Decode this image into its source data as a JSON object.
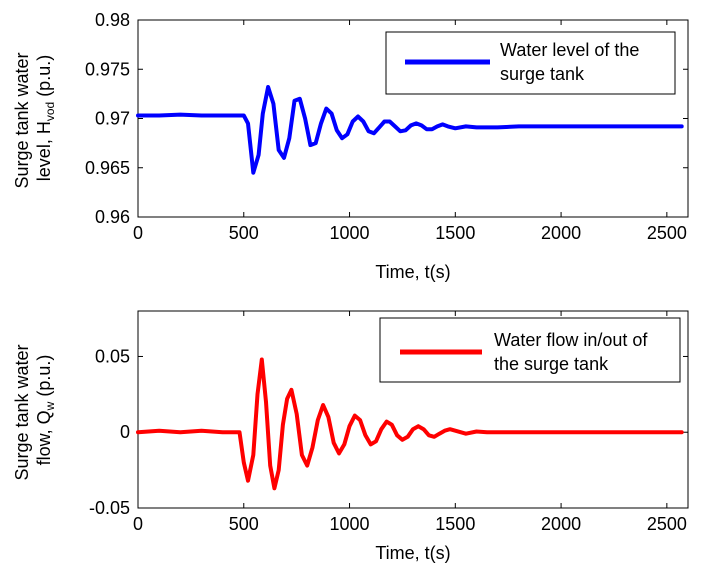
{
  "chart_data": [
    {
      "type": "line",
      "xlabel": "Time, t(s)",
      "ylabel": {
        "line1": "Surge tank water",
        "line2_pre": "level, H",
        "line2_sub": "vod",
        "line2_post": " (p.u.)"
      },
      "xlim": [
        0,
        2600
      ],
      "ylim": [
        0.96,
        0.98
      ],
      "xticks": [
        0,
        500,
        1000,
        1500,
        2000,
        2500
      ],
      "yticks": [
        0.96,
        0.965,
        0.97,
        0.975,
        0.98
      ],
      "xtick_labels": [
        "0",
        "500",
        "1000",
        "1500",
        "2000",
        "2500"
      ],
      "ytick_labels": [
        "0.96",
        "0.965",
        "0.97",
        "0.975",
        "0.98"
      ],
      "grid": false,
      "legend_position": "top-right",
      "legend_lines": [
        "Water level of the",
        "surge tank"
      ],
      "series": [
        {
          "name": "Water level of the surge tank",
          "color": "#0000ff",
          "x": [
            0,
            100,
            200,
            300,
            400,
            470,
            500,
            520,
            545,
            570,
            590,
            615,
            640,
            665,
            690,
            715,
            740,
            765,
            790,
            815,
            840,
            865,
            890,
            915,
            940,
            965,
            990,
            1015,
            1040,
            1065,
            1090,
            1115,
            1140,
            1165,
            1190,
            1215,
            1240,
            1265,
            1290,
            1315,
            1340,
            1365,
            1390,
            1415,
            1440,
            1465,
            1500,
            1550,
            1600,
            1700,
            1800,
            2000,
            2200,
            2400,
            2570
          ],
          "y": [
            0.9703,
            0.9703,
            0.9704,
            0.9703,
            0.9703,
            0.9703,
            0.9703,
            0.9695,
            0.9645,
            0.9663,
            0.9705,
            0.9732,
            0.9715,
            0.9668,
            0.966,
            0.968,
            0.9718,
            0.972,
            0.97,
            0.9673,
            0.9675,
            0.9695,
            0.971,
            0.9705,
            0.9688,
            0.968,
            0.9684,
            0.9697,
            0.9702,
            0.9697,
            0.9687,
            0.9685,
            0.9691,
            0.9697,
            0.9697,
            0.9692,
            0.9687,
            0.9688,
            0.9693,
            0.9695,
            0.9693,
            0.9689,
            0.9689,
            0.9692,
            0.9694,
            0.9692,
            0.969,
            0.9692,
            0.9691,
            0.9691,
            0.9692,
            0.9692,
            0.9692,
            0.9692,
            0.9692
          ]
        }
      ]
    },
    {
      "type": "line",
      "xlabel": "Time, t(s)",
      "ylabel": {
        "line1": "Surge tank water",
        "line2_pre": "flow, Q",
        "line2_sub": "w",
        "line2_post": " (p.u.)"
      },
      "xlim": [
        0,
        2600
      ],
      "ylim": [
        -0.05,
        0.08
      ],
      "xticks": [
        0,
        500,
        1000,
        1500,
        2000,
        2500
      ],
      "yticks": [
        -0.05,
        0,
        0.05
      ],
      "xtick_labels": [
        "0",
        "500",
        "1000",
        "1500",
        "2000",
        "2500"
      ],
      "ytick_labels": [
        "-0.05",
        "0",
        "0.05"
      ],
      "grid": false,
      "legend_position": "top-right",
      "legend_lines": [
        "Water flow in/out of",
        "the surge tank"
      ],
      "series": [
        {
          "name": "Water flow in/out of the surge tank",
          "color": "#ff0000",
          "x": [
            0,
            100,
            200,
            300,
            400,
            480,
            500,
            520,
            545,
            565,
            585,
            605,
            625,
            645,
            665,
            685,
            705,
            725,
            750,
            775,
            800,
            825,
            850,
            875,
            900,
            925,
            950,
            975,
            1000,
            1025,
            1050,
            1075,
            1100,
            1125,
            1150,
            1175,
            1200,
            1225,
            1250,
            1275,
            1300,
            1325,
            1350,
            1375,
            1400,
            1425,
            1450,
            1475,
            1500,
            1550,
            1600,
            1650,
            1700,
            1800,
            2000,
            2200,
            2400,
            2570
          ],
          "y": [
            0,
            0.001,
            0,
            0.001,
            0,
            0,
            -0.02,
            -0.032,
            -0.015,
            0.025,
            0.048,
            0.02,
            -0.022,
            -0.037,
            -0.025,
            0.005,
            0.022,
            0.028,
            0.012,
            -0.015,
            -0.022,
            -0.01,
            0.008,
            0.018,
            0.01,
            -0.007,
            -0.014,
            -0.008,
            0.004,
            0.011,
            0.008,
            -0.002,
            -0.008,
            -0.006,
            0.002,
            0.007,
            0.005,
            -0.002,
            -0.005,
            -0.003,
            0.002,
            0.004,
            0.002,
            -0.002,
            -0.003,
            -0.001,
            0.001,
            0.002,
            0.001,
            -0.001,
            0.0005,
            0,
            0,
            0,
            0,
            0,
            0,
            0
          ]
        }
      ]
    }
  ]
}
